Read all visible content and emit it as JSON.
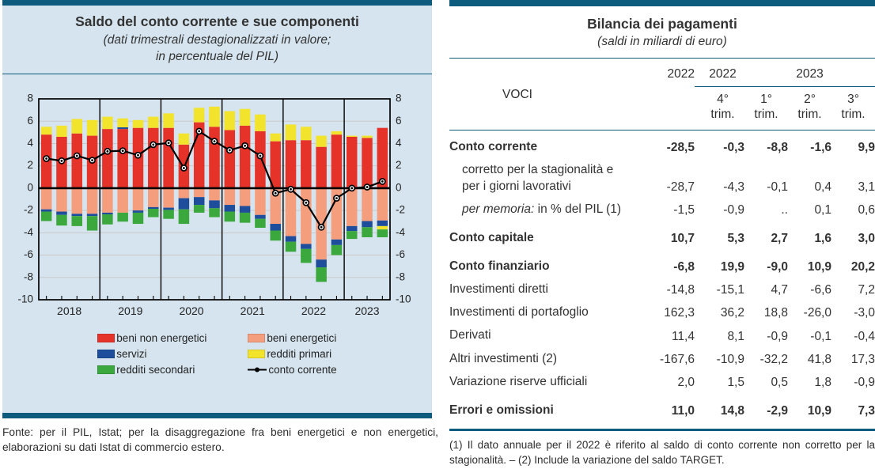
{
  "colors": {
    "teal": "#0d5c7d",
    "panel-bg": "#d5e4ee",
    "grid": "#c9c9c9",
    "text": "#2e2e2e"
  },
  "left_panel": {
    "source_note": "Fonte: per il PIL, Istat; per la disaggregazione fra beni energetici e non energetici, elaborazioni su dati Istat di commercio estero."
  },
  "chart_data": {
    "type": "bar",
    "subtype": "stacked-bars-with-line",
    "title": "Saldo del conto corrente e sue componenti",
    "subtitle_lines": [
      "(dati trimestrali destagionalizzati in valore;",
      "in percentuale del PIL)"
    ],
    "ylim": [
      -10,
      8
    ],
    "ytick_step": 2,
    "grid": true,
    "legend_position": "bottom",
    "years": [
      {
        "label": "2018",
        "quarters": 4
      },
      {
        "label": "2019",
        "quarters": 4
      },
      {
        "label": "2020",
        "quarters": 4
      },
      {
        "label": "2021",
        "quarters": 4
      },
      {
        "label": "2022",
        "quarters": 4
      },
      {
        "label": "2023",
        "quarters": 3
      }
    ],
    "stack_order": [
      "beni non energetici",
      "beni energetici",
      "servizi",
      "redditi primari",
      "redditi secondari"
    ],
    "series": [
      {
        "name": "beni non energetici",
        "color": "#e5332a",
        "values": [
          4.8,
          4.6,
          4.9,
          4.7,
          5.3,
          5.3,
          5.4,
          5.4,
          5.4,
          3.9,
          5.9,
          5.5,
          5.2,
          5.6,
          5.1,
          4.2,
          4.3,
          4.3,
          3.7,
          4.8,
          4.6,
          4.5,
          5.4
        ]
      },
      {
        "name": "beni energetici",
        "color": "#f49e7d",
        "values": [
          -1.9,
          -2.1,
          -2.3,
          -2.3,
          -2.2,
          -2.2,
          -2.0,
          -1.7,
          -1.75,
          -0.9,
          -0.8,
          -1.1,
          -1.5,
          -1.6,
          -2.4,
          -3.2,
          -4.3,
          -5.0,
          -6.4,
          -4.6,
          -3.4,
          -2.95,
          -2.9
        ]
      },
      {
        "name": "servizi",
        "color": "#1d4d9b",
        "values": [
          -0.2,
          -0.3,
          -0.2,
          -0.2,
          -0.15,
          0.15,
          -0.2,
          -0.15,
          -0.2,
          -1.0,
          -0.7,
          -0.7,
          -0.6,
          -0.6,
          -0.35,
          -0.6,
          -0.5,
          -0.45,
          -0.7,
          -0.5,
          -0.45,
          -0.55,
          -0.5
        ]
      },
      {
        "name": "redditi primari",
        "color": "#f2e32d",
        "values": [
          0.7,
          1.0,
          1.3,
          1.4,
          1.1,
          0.8,
          0.7,
          1.0,
          1.3,
          1.0,
          1.3,
          1.8,
          1.7,
          1.5,
          1.5,
          0.7,
          1.4,
          1.2,
          1.0,
          0.3,
          0.1,
          0.2,
          -0.3
        ]
      },
      {
        "name": "redditi secondari",
        "color": "#3aa83c",
        "values": [
          -0.85,
          -0.95,
          -0.9,
          -1.3,
          -0.9,
          -0.8,
          -1.0,
          -0.75,
          -0.8,
          -1.3,
          -0.7,
          -0.8,
          -0.9,
          -0.9,
          -0.8,
          -0.9,
          -0.9,
          -1.25,
          -1.3,
          -0.9,
          -0.7,
          -0.9,
          -0.7
        ]
      }
    ],
    "line_series": {
      "name": "conto corrente",
      "color": "#000000",
      "values": [
        2.65,
        2.45,
        2.9,
        2.5,
        3.3,
        3.35,
        2.95,
        3.9,
        4.05,
        1.8,
        5.1,
        4.2,
        3.4,
        3.8,
        2.9,
        -0.45,
        -0.1,
        -1.3,
        -3.5,
        -0.9,
        0.0,
        0.1,
        0.6
      ]
    },
    "legend": [
      {
        "label": "beni non energetici",
        "series": "beni non energetici"
      },
      {
        "label": "beni energetici",
        "series": "beni energetici"
      },
      {
        "label": "servizi",
        "series": "servizi"
      },
      {
        "label": "redditi primari",
        "series": "redditi primari"
      },
      {
        "label": "redditi secondari",
        "series": "redditi secondari"
      },
      {
        "label": "conto corrente",
        "type": "line"
      }
    ]
  },
  "table": {
    "title": "Bilancia dei pagamenti",
    "subtitle": "(saldi in miliardi di euro)",
    "voci_label": "VOCI",
    "annual_col_label": "2022",
    "groups": [
      {
        "label": "2022",
        "quarters": [
          {
            "num": "4°",
            "unit": "trim."
          }
        ]
      },
      {
        "label": "2023",
        "quarters": [
          {
            "num": "1°",
            "unit": "trim."
          },
          {
            "num": "2°",
            "unit": "trim."
          },
          {
            "num": "3°",
            "unit": "trim."
          }
        ]
      }
    ],
    "rows": [
      {
        "label": "Conto corrente",
        "style": "bold",
        "values": [
          "-28,5",
          "-0,3",
          "-8,8",
          "-1,6",
          "9,9"
        ]
      },
      {
        "label": "corretto per la stagionalità e per i giorni lavorativi",
        "style": "sub",
        "values": [
          "-28,7",
          "-4,3",
          "-0,1",
          "0,4",
          "3,1"
        ]
      },
      {
        "italic_prefix": "per memoria:",
        "label": " in % del PIL (1)",
        "style": "sub",
        "values": [
          "-1,5",
          "-0,9",
          "..",
          "0,1",
          "0,6"
        ]
      },
      {
        "label": "Conto capitale",
        "style": "bold gap",
        "values": [
          "10,7",
          "5,3",
          "2,7",
          "1,6",
          "3,0"
        ]
      },
      {
        "label": "Conto finanziario",
        "style": "bold gap",
        "values": [
          "-6,8",
          "19,9",
          "-9,0",
          "10,9",
          "20,2"
        ]
      },
      {
        "label": "Investimenti diretti",
        "style": "",
        "values": [
          "-14,8",
          "-15,1",
          "4,7",
          "-6,6",
          "7,2"
        ]
      },
      {
        "label": "Investimenti di portafoglio",
        "style": "",
        "values": [
          "162,3",
          "36,2",
          "18,8",
          "-26,0",
          "-3,0"
        ]
      },
      {
        "label": "Derivati",
        "style": "",
        "values": [
          "11,4",
          "8,1",
          "-0,9",
          "-0,1",
          "-0,4"
        ]
      },
      {
        "label": "Altri investimenti (2)",
        "style": "",
        "values": [
          "-167,6",
          "-10,9",
          "-32,2",
          "41,8",
          "17,3"
        ]
      },
      {
        "label": "Variazione riserve ufficiali",
        "style": "",
        "values": [
          "2,0",
          "1,5",
          "0,5",
          "1,8",
          "-0,9"
        ]
      },
      {
        "label": "Errori e omissioni",
        "style": "bold gap",
        "values": [
          "11,0",
          "14,8",
          "-2,9",
          "10,9",
          "7,3"
        ]
      }
    ],
    "footnote": "(1) Il dato annuale per il 2022 è riferito al saldo di conto corrente non corretto per la stagionalità. – (2) Include la variazione del saldo TARGET."
  }
}
